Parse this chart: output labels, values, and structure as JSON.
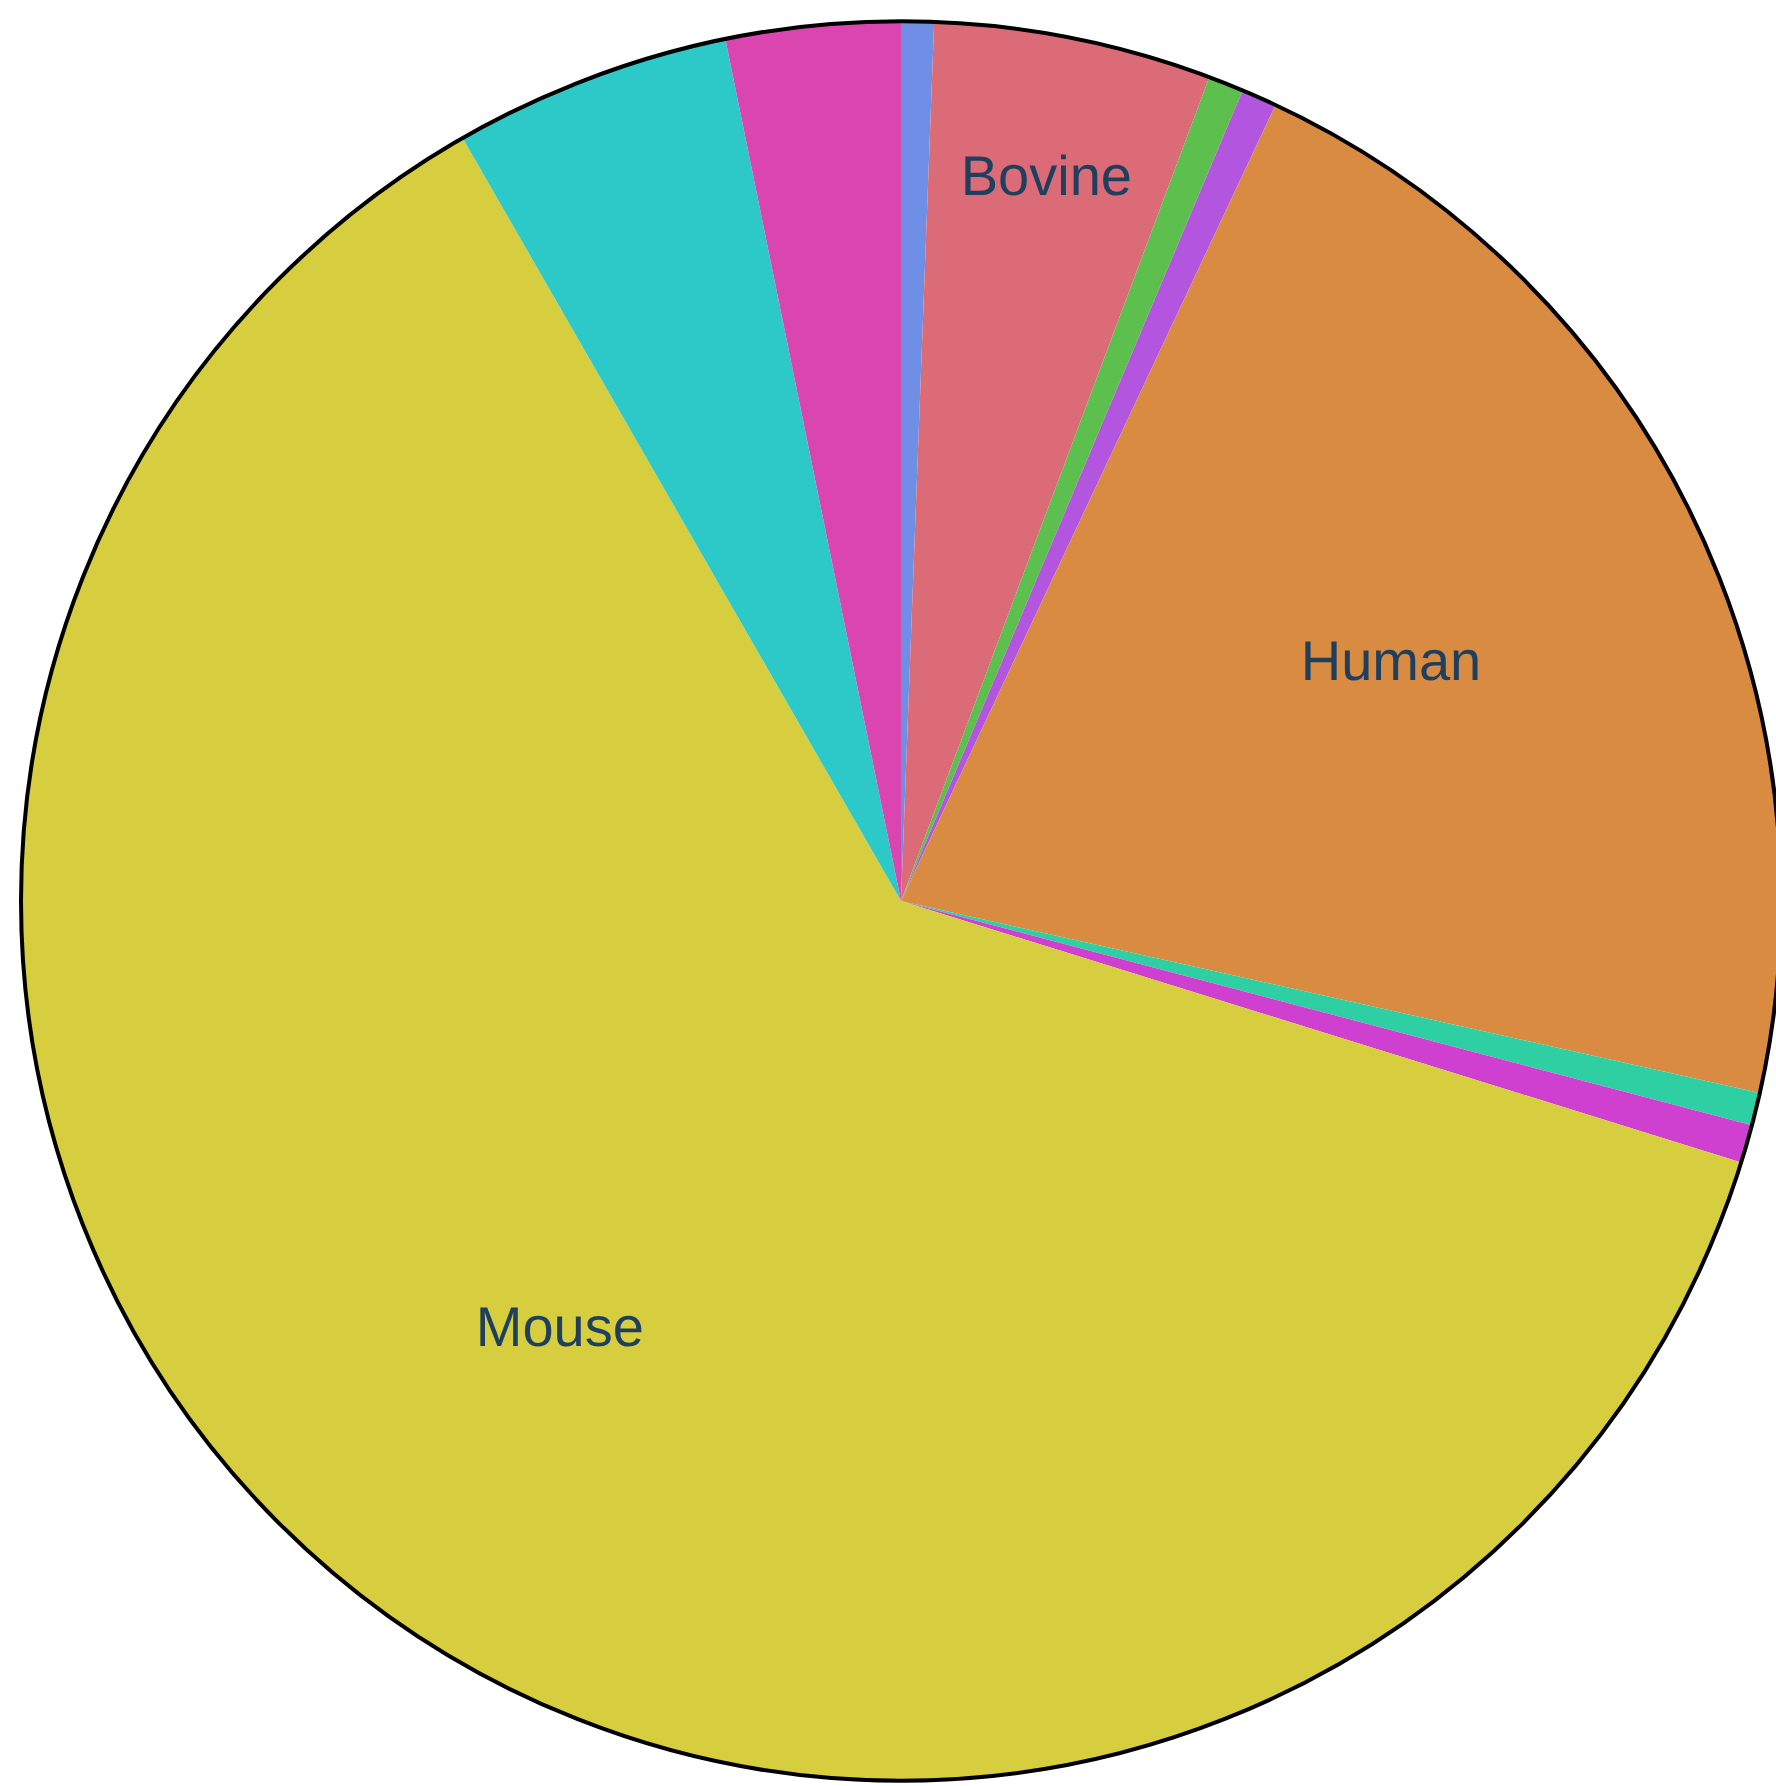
{
  "chart_data": {
    "type": "pie",
    "categories": [
      null,
      "Bovine",
      null,
      null,
      "Human",
      null,
      null,
      "Mouse",
      null,
      null
    ],
    "values": [
      0.6,
      5.1,
      0.65,
      0.65,
      21.5,
      0.6,
      0.7,
      61.9,
      5.1,
      3.2
    ],
    "colors": [
      "#6f8fe6",
      "#dc6b78",
      "#5cbf4e",
      "#b455e0",
      "#d98b41",
      "#2fcfa4",
      "#d040d0",
      "#d6cd3f",
      "#2dc9c9",
      "#da45b0"
    ]
  }
}
